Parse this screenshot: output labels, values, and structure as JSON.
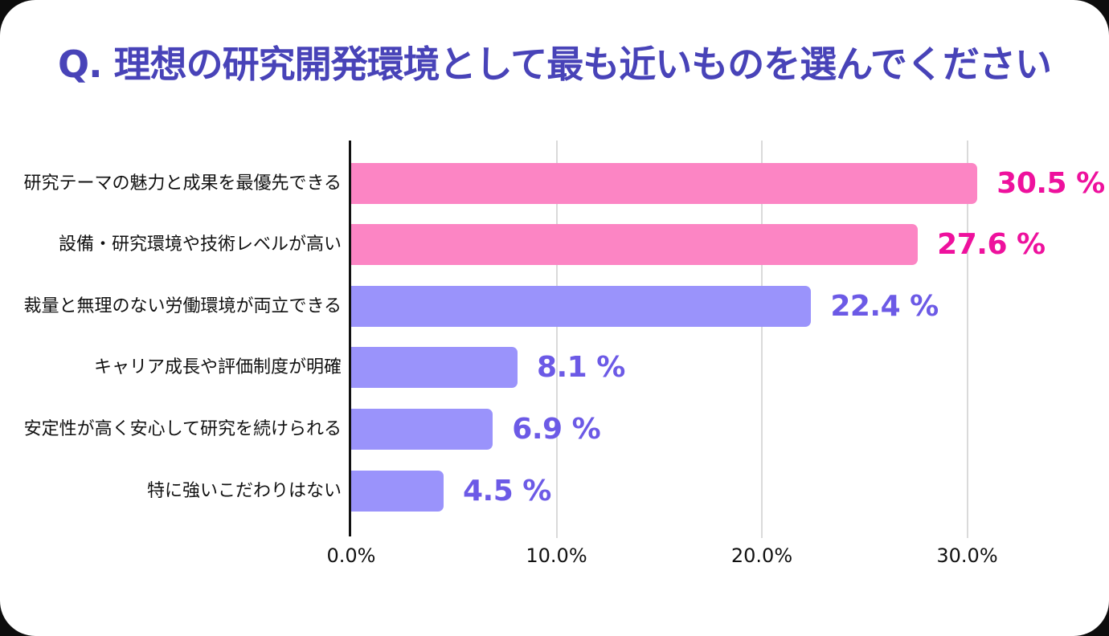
{
  "page": {
    "outer_background": "#0d0d0d",
    "card_background": "#ffffff",
    "title_color": "#4843b8"
  },
  "title": "Q. 理想の研究開発環境として最も近いものを選んでください",
  "chart_data": {
    "type": "bar",
    "orientation": "horizontal",
    "title": "Q. 理想の研究開発環境として最も近いものを選んでください",
    "categories": [
      "研究テーマの魅力と成果を最優先できる",
      "設備・研究環境や技術レベルが高い",
      "裁量と無理のない労働環境が両立できる",
      "キャリア成長や評価制度が明確",
      "安定性が高く安心して研究を続けられる",
      "特に強いこだわりはない"
    ],
    "values": [
      30.5,
      27.6,
      22.4,
      8.1,
      6.9,
      4.5
    ],
    "value_labels": [
      "30.5 %",
      "27.6 %",
      "22.4 %",
      "8.1 %",
      "6.9 %",
      "4.5 %"
    ],
    "bar_colors": [
      "#fc85c4",
      "#fc85c4",
      "#9a93fb",
      "#9a93fb",
      "#9a93fb",
      "#9a93fb"
    ],
    "value_label_colors": [
      "#ee119d",
      "#ee119d",
      "#6c5ae6",
      "#6c5ae6",
      "#6c5ae6",
      "#6c5ae6"
    ],
    "xlabel": "",
    "ylabel": "",
    "xlim": [
      0,
      35.2
    ],
    "x_ticks": [
      "0.0%",
      "10.0%",
      "20.0%",
      "30.0%"
    ],
    "x_tick_values": [
      0,
      10,
      20,
      30
    ],
    "grid": "vertical-gridlines",
    "gridline_color": "#dadada",
    "axis_color": "#111111",
    "legend": "none"
  }
}
